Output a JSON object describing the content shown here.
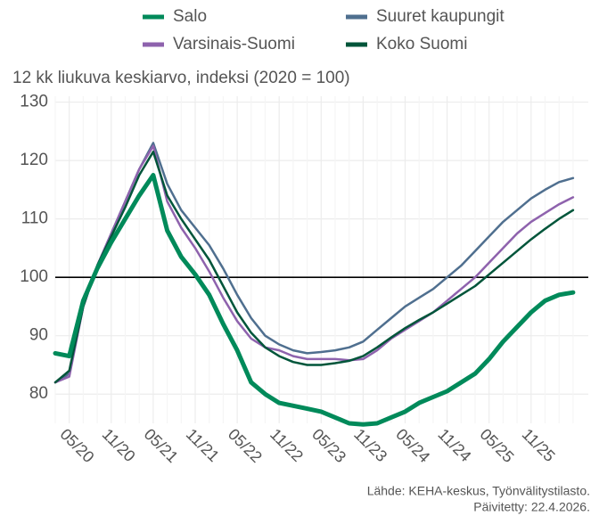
{
  "chart_data": {
    "type": "line",
    "subtitle": "12 kk liukuva keskiarvo, indeksi (2020 = 100)",
    "categories": [
      null,
      "05/20",
      null,
      null,
      "11/20",
      null,
      null,
      "05/21",
      null,
      null,
      "11/21",
      null,
      null,
      "05/22",
      null,
      null,
      "11/22",
      null,
      null,
      "05/23",
      null,
      null,
      "11/23",
      null,
      null,
      "05/24",
      null,
      null,
      "11/24",
      null,
      null,
      "05/25",
      null,
      null,
      "11/25",
      null,
      null,
      null
    ],
    "series": [
      {
        "name": "Salo",
        "color": "#008a5a",
        "values": [
          87,
          86.5,
          96,
          101.5,
          106,
          110,
          114,
          117.5,
          108,
          103.5,
          100.5,
          97,
          92,
          87.5,
          82,
          80,
          78.5,
          78,
          77.5,
          77,
          76,
          75,
          74.8,
          75,
          76,
          77,
          78.5,
          79.5,
          80.5,
          82,
          83.5,
          86,
          89,
          91.5,
          94,
          96,
          97,
          97.4
        ]
      },
      {
        "name": "Suuret kaupungit",
        "color": "#4f6f8f",
        "values": [
          82,
          83.5,
          95,
          102,
          107.5,
          113,
          118.5,
          123,
          116,
          111.5,
          108.5,
          105.5,
          101.5,
          97,
          93,
          90,
          88.5,
          87.5,
          87,
          87.2,
          87.5,
          88,
          89,
          91,
          93,
          95,
          96.5,
          98,
          100,
          102,
          104.5,
          107,
          109.5,
          111.5,
          113.5,
          115,
          116.3,
          117
        ]
      },
      {
        "name": "Varsinais-Suomi",
        "color": "#8e62ad",
        "values": [
          82,
          83,
          95,
          102,
          107.5,
          113,
          118.5,
          122.5,
          113,
          108.5,
          105,
          101,
          96.5,
          92.5,
          89.5,
          88,
          87.5,
          86.5,
          86,
          86,
          86,
          85.8,
          86,
          87.5,
          89.5,
          91,
          92.5,
          94,
          96,
          98,
          100,
          102.5,
          105,
          107.5,
          109.5,
          111,
          112.5,
          113.7
        ]
      },
      {
        "name": "Koko Suomi",
        "color": "#00553a",
        "values": [
          82,
          84,
          95,
          102,
          107,
          112,
          117.5,
          121.5,
          114,
          110,
          106.5,
          103,
          98.5,
          94,
          90.5,
          88,
          86.5,
          85.5,
          85,
          85,
          85.3,
          85.7,
          86.5,
          88,
          89.7,
          91.3,
          92.7,
          94,
          95.5,
          97,
          98.5,
          100.5,
          102.5,
          104.5,
          106.5,
          108.3,
          110,
          111.5
        ]
      }
    ],
    "ylim": [
      75,
      131
    ],
    "yticks": [
      80,
      90,
      100,
      110,
      120,
      130
    ],
    "hline": 100,
    "grid": true,
    "source": [
      "Lähde: KEHA-keskus, Työnvälitystilasto.",
      "Päivitetty: 22.4.2026."
    ]
  }
}
